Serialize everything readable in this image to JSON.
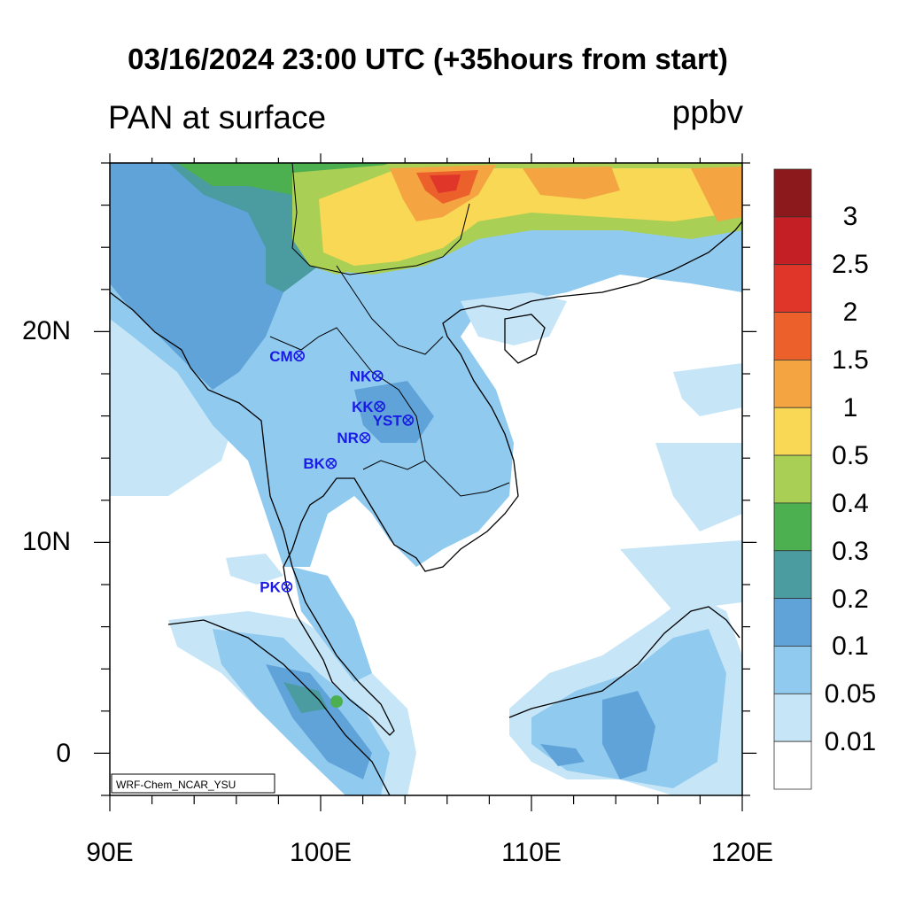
{
  "header": {
    "title": "03/16/2024 23:00 UTC (+35hours from start)",
    "left_label": "PAN at surface",
    "right_label": "ppbv"
  },
  "map": {
    "lon_range": [
      90,
      120
    ],
    "lat_range": [
      -2,
      28
    ],
    "lat_ticks": [
      {
        "value": 20,
        "label": "20N"
      },
      {
        "value": 10,
        "label": "10N"
      },
      {
        "value": 0,
        "label": "0"
      }
    ],
    "lon_ticks": [
      {
        "value": 90,
        "label": "90E"
      },
      {
        "value": 100,
        "label": "100E"
      },
      {
        "value": 110,
        "label": "110E"
      },
      {
        "value": 120,
        "label": "120E"
      }
    ],
    "credit": "WRF-Chem_NCAR_YSU",
    "stations": [
      {
        "code": "CM",
        "lon": 98.98,
        "lat": 18.85
      },
      {
        "code": "NK",
        "lon": 102.7,
        "lat": 17.9
      },
      {
        "code": "KK",
        "lon": 102.8,
        "lat": 16.45
      },
      {
        "code": "YST",
        "lon": 104.15,
        "lat": 15.8
      },
      {
        "code": "NR",
        "lon": 102.1,
        "lat": 14.97
      },
      {
        "code": "BK",
        "lon": 100.5,
        "lat": 13.75
      },
      {
        "code": "PK",
        "lon": 98.4,
        "lat": 7.9
      }
    ]
  },
  "colorbar": {
    "labels": [
      "3",
      "2.5",
      "2",
      "1.5",
      "1",
      "0.5",
      "0.4",
      "0.3",
      "0.2",
      "0.1",
      "0.05",
      "0.01"
    ],
    "colors": [
      "#8c1a1c",
      "#c41f24",
      "#e0362a",
      "#ec602c",
      "#f4a441",
      "#f8d855",
      "#a9cf55",
      "#4cb050",
      "#4a9ca0",
      "#5fa3d9",
      "#91caef",
      "#c6e6f8",
      "#ffffff"
    ]
  },
  "legend_colors": {
    "water": "#ffffff",
    "station_marker": "#1a1ae6"
  }
}
